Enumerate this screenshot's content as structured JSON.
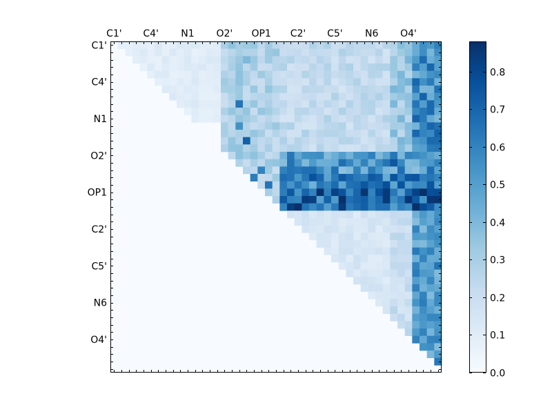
{
  "chart_data": {
    "type": "heatmap",
    "title": "",
    "xlabel": "",
    "ylabel": "",
    "n": 45,
    "row_labels": [
      "C1'",
      "C4'",
      "N1",
      "O2'",
      "OP1",
      "C2'",
      "C5'",
      "N6",
      "O4'"
    ],
    "row_label_indices": [
      0,
      5,
      10,
      15,
      20,
      25,
      30,
      35,
      40
    ],
    "col_labels": [
      "C1'",
      "C4'",
      "N1",
      "O2'",
      "OP1",
      "C2'",
      "C5'",
      "N6",
      "O4'"
    ],
    "col_label_indices": [
      0,
      5,
      10,
      15,
      20,
      25,
      30,
      35,
      40
    ],
    "colorbar": {
      "min": 0.0,
      "max": 0.88,
      "ticks": [
        0.0,
        0.1,
        0.2,
        0.3,
        0.4,
        0.5,
        0.6,
        0.7,
        0.8
      ],
      "tick_labels": [
        "0.0",
        "0.1",
        "0.2",
        "0.3",
        "0.4",
        "0.5",
        "0.6",
        "0.7",
        "0.8"
      ],
      "colormap": "Blues"
    },
    "matrix_note": "strictly upper-triangular; lower triangle and diagonal are 0",
    "blocks": [
      {
        "rows": [
          0,
          22
        ],
        "cols": [
          23,
          37
        ],
        "value": 0.22
      },
      {
        "rows": [
          0,
          22
        ],
        "cols": [
          38,
          40
        ],
        "value": 0.32
      },
      {
        "rows": [
          0,
          22
        ],
        "cols": [
          41,
          44
        ],
        "value": 0.55
      },
      {
        "rows": [
          0,
          10
        ],
        "cols": [
          1,
          17
        ],
        "value": 0.1
      },
      {
        "rows": [
          0,
          22
        ],
        "cols": [
          15,
          22
        ],
        "value": 0.28
      },
      {
        "rows": [
          15,
          17
        ],
        "cols": [
          23,
          44
        ],
        "value": 0.52
      },
      {
        "rows": [
          18,
          20
        ],
        "cols": [
          23,
          44
        ],
        "value": 0.6
      },
      {
        "rows": [
          20,
          22
        ],
        "cols": [
          23,
          44
        ],
        "value": 0.7
      },
      {
        "rows": [
          23,
          44
        ],
        "cols": [
          24,
          44
        ],
        "value": 0.14
      },
      {
        "rows": [
          23,
          44
        ],
        "cols": [
          38,
          40
        ],
        "value": 0.2
      },
      {
        "rows": [
          23,
          44
        ],
        "cols": [
          41,
          44
        ],
        "value": 0.5
      }
    ],
    "highlights": [
      {
        "row": 2,
        "col": 18,
        "value": 0.4
      },
      {
        "row": 8,
        "col": 17,
        "value": 0.65
      },
      {
        "row": 11,
        "col": 17,
        "value": 0.55
      },
      {
        "row": 13,
        "col": 18,
        "value": 0.72
      },
      {
        "row": 17,
        "col": 20,
        "value": 0.6
      },
      {
        "row": 18,
        "col": 19,
        "value": 0.62
      },
      {
        "row": 19,
        "col": 21,
        "value": 0.65
      },
      {
        "row": 20,
        "col": 42,
        "value": 0.88
      },
      {
        "row": 21,
        "col": 43,
        "value": 0.86
      },
      {
        "row": 16,
        "col": 38,
        "value": 0.75
      },
      {
        "row": 28,
        "col": 42,
        "value": 0.55
      },
      {
        "row": 30,
        "col": 41,
        "value": 0.6
      },
      {
        "row": 34,
        "col": 42,
        "value": 0.6
      },
      {
        "row": 40,
        "col": 43,
        "value": 0.6
      }
    ]
  }
}
